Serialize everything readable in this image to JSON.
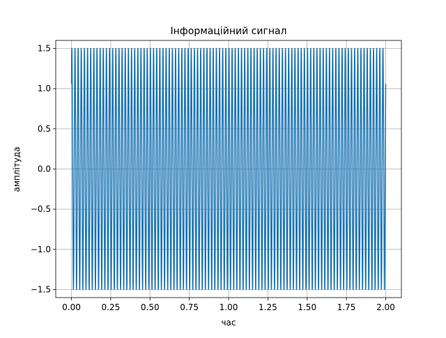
{
  "chart_data": {
    "type": "line",
    "title": "Інформаційний сигнал",
    "xlabel": "час",
    "ylabel": "амплітуда",
    "xlim": [
      -0.1,
      2.1
    ],
    "ylim": [
      -1.6,
      1.6
    ],
    "grid": true,
    "legend": "none",
    "series_color": "#1f77b4",
    "x_ticks": [
      0.0,
      0.25,
      0.5,
      0.75,
      1.0,
      1.25,
      1.5,
      1.75,
      2.0
    ],
    "x_tick_labels": [
      "0.00",
      "0.25",
      "0.50",
      "0.75",
      "1.00",
      "1.25",
      "1.50",
      "1.75",
      "2.00"
    ],
    "y_ticks": [
      -1.5,
      -1.0,
      -0.5,
      0.0,
      0.5,
      1.0,
      1.5
    ],
    "y_tick_labels": [
      "−1.5",
      "−1.0",
      "−0.5",
      "0.0",
      "0.5",
      "1.0",
      "1.5"
    ],
    "series": [
      {
        "amplitude": 1.5,
        "frequency_hz": 50,
        "phase_rad": 0.7854,
        "x_start": 0.0,
        "x_end": 2.0
      }
    ]
  }
}
